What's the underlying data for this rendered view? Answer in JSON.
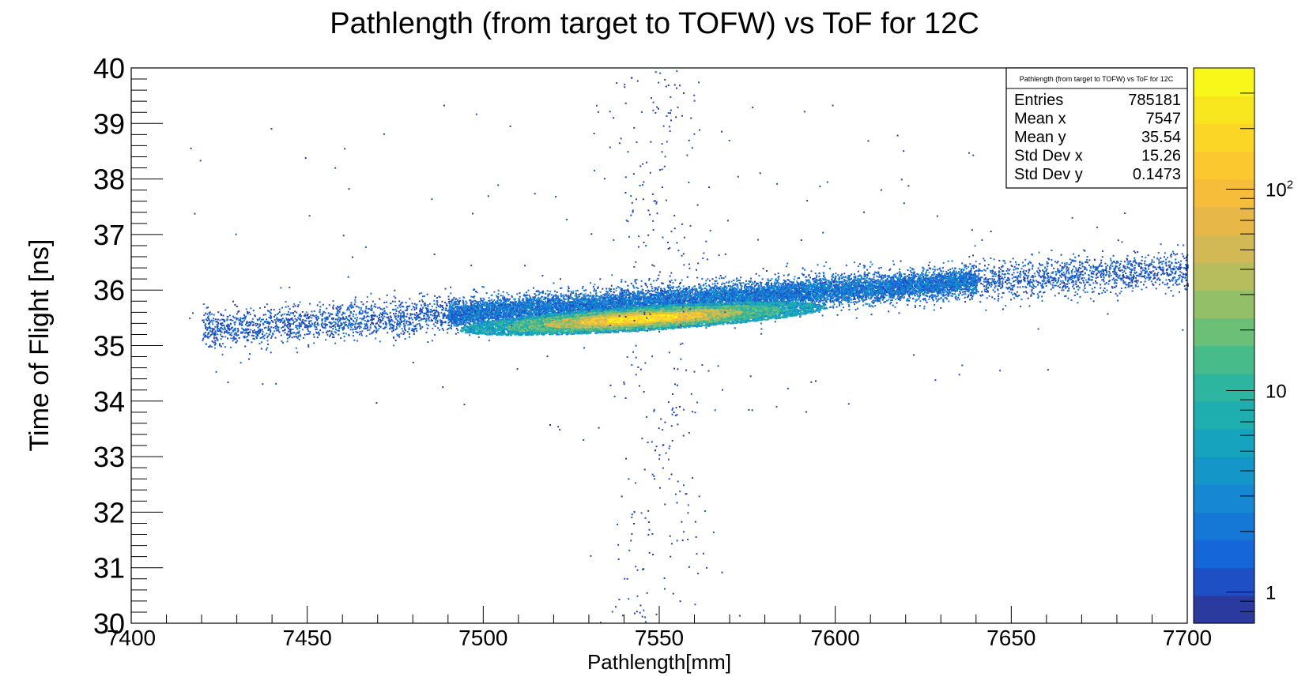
{
  "chart_data": {
    "type": "heatmap",
    "title": "Pathlength (from target to TOFW) vs ToF for 12C",
    "xlabel": "Pathlength[mm]",
    "ylabel": "Time of Flight [ns]",
    "xlim": [
      7400,
      7700
    ],
    "ylim": [
      30,
      40
    ],
    "x_ticks": [
      "7400",
      "7450",
      "7500",
      "7550",
      "7600",
      "7650",
      "7700"
    ],
    "y_ticks": [
      "30",
      "31",
      "32",
      "33",
      "34",
      "35",
      "36",
      "37",
      "38",
      "39",
      "40"
    ],
    "colorbar": {
      "scale": "log",
      "range": [
        0.7,
        400
      ],
      "tick_labels": [
        {
          "value": 1,
          "base": "1",
          "exp": ""
        },
        {
          "value": 10,
          "base": "10",
          "exp": ""
        },
        {
          "value": 100,
          "base": "10",
          "exp": "2"
        }
      ]
    },
    "distribution": {
      "core": {
        "x_center": 7545,
        "y_center": 35.5,
        "peak_counts": 300
      },
      "band": {
        "x_from": 7420,
        "y_from": 35.3,
        "x_to": 7700,
        "y_to": 36.4
      },
      "vertical_scatter_x": 7550
    },
    "stats_box": {
      "title": "Pathlength (from target to TOFW) vs ToF for 12C",
      "rows": [
        {
          "label": "Entries",
          "value": "785181"
        },
        {
          "label": "Mean x",
          "value": "7547"
        },
        {
          "label": "Mean y",
          "value": "35.54"
        },
        {
          "label": "Std Dev x",
          "value": "15.26"
        },
        {
          "label": "Std Dev y",
          "value": "0.1473"
        }
      ]
    },
    "palette": [
      "#2b3a9e",
      "#1f4fc4",
      "#1566d8",
      "#1577d6",
      "#1687d2",
      "#1496c8",
      "#16a3bd",
      "#1faeb0",
      "#2db59f",
      "#48bb8a",
      "#6bbf77",
      "#93bf68",
      "#b7bd5d",
      "#d3b956",
      "#e7b848",
      "#f5bd39",
      "#fbc830",
      "#fbd626",
      "#f8e61e",
      "#f9f71a"
    ]
  }
}
